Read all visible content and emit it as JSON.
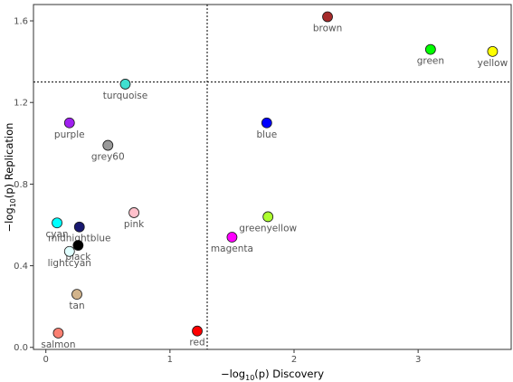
{
  "chart_data": {
    "type": "scatter",
    "xlabel_prefix": "−log",
    "xlabel_sub": "10",
    "xlabel_suffix": "(p) Discovery",
    "ylabel_prefix": "−log",
    "ylabel_sub": "10",
    "ylabel_suffix": "(p) Replication",
    "xlim": [
      -0.1,
      3.75
    ],
    "ylim": [
      -0.01,
      1.68
    ],
    "xticks": [
      0,
      1,
      2,
      3
    ],
    "yticks": [
      0.0,
      0.4,
      0.8,
      1.2,
      1.6
    ],
    "ytick_labels": [
      "0.0",
      "0.4",
      "0.8",
      "1.2",
      "1.6"
    ],
    "threshold_x": 1.3,
    "threshold_y": 1.3,
    "grid": false,
    "points": [
      {
        "name": "brown",
        "x": 2.27,
        "y": 1.62,
        "color": "#a52a2a"
      },
      {
        "name": "green",
        "x": 3.1,
        "y": 1.46,
        "color": "#00ff00"
      },
      {
        "name": "yellow",
        "x": 3.6,
        "y": 1.45,
        "color": "#ffff00"
      },
      {
        "name": "turquoise",
        "x": 0.64,
        "y": 1.29,
        "color": "#40e0d0"
      },
      {
        "name": "blue",
        "x": 1.78,
        "y": 1.1,
        "color": "#0000ff"
      },
      {
        "name": "purple",
        "x": 0.19,
        "y": 1.1,
        "color": "#a020f0"
      },
      {
        "name": "grey60",
        "x": 0.5,
        "y": 0.99,
        "color": "#999999"
      },
      {
        "name": "greenyellow",
        "x": 1.79,
        "y": 0.64,
        "color": "#adff2f"
      },
      {
        "name": "pink",
        "x": 0.71,
        "y": 0.66,
        "color": "#ffc0cb"
      },
      {
        "name": "cyan",
        "x": 0.09,
        "y": 0.61,
        "color": "#00ffff"
      },
      {
        "name": "midnightblue",
        "x": 0.27,
        "y": 0.59,
        "color": "#191970"
      },
      {
        "name": "magenta",
        "x": 1.5,
        "y": 0.54,
        "color": "#ff00ff"
      },
      {
        "name": "black",
        "x": 0.26,
        "y": 0.5,
        "color": "#000000"
      },
      {
        "name": "lightcyan",
        "x": 0.19,
        "y": 0.47,
        "color": "#e0ffff"
      },
      {
        "name": "tan",
        "x": 0.25,
        "y": 0.26,
        "color": "#d2b48c"
      },
      {
        "name": "red",
        "x": 1.22,
        "y": 0.08,
        "color": "#ff0000"
      },
      {
        "name": "salmon",
        "x": 0.1,
        "y": 0.07,
        "color": "#fa8072"
      }
    ]
  }
}
